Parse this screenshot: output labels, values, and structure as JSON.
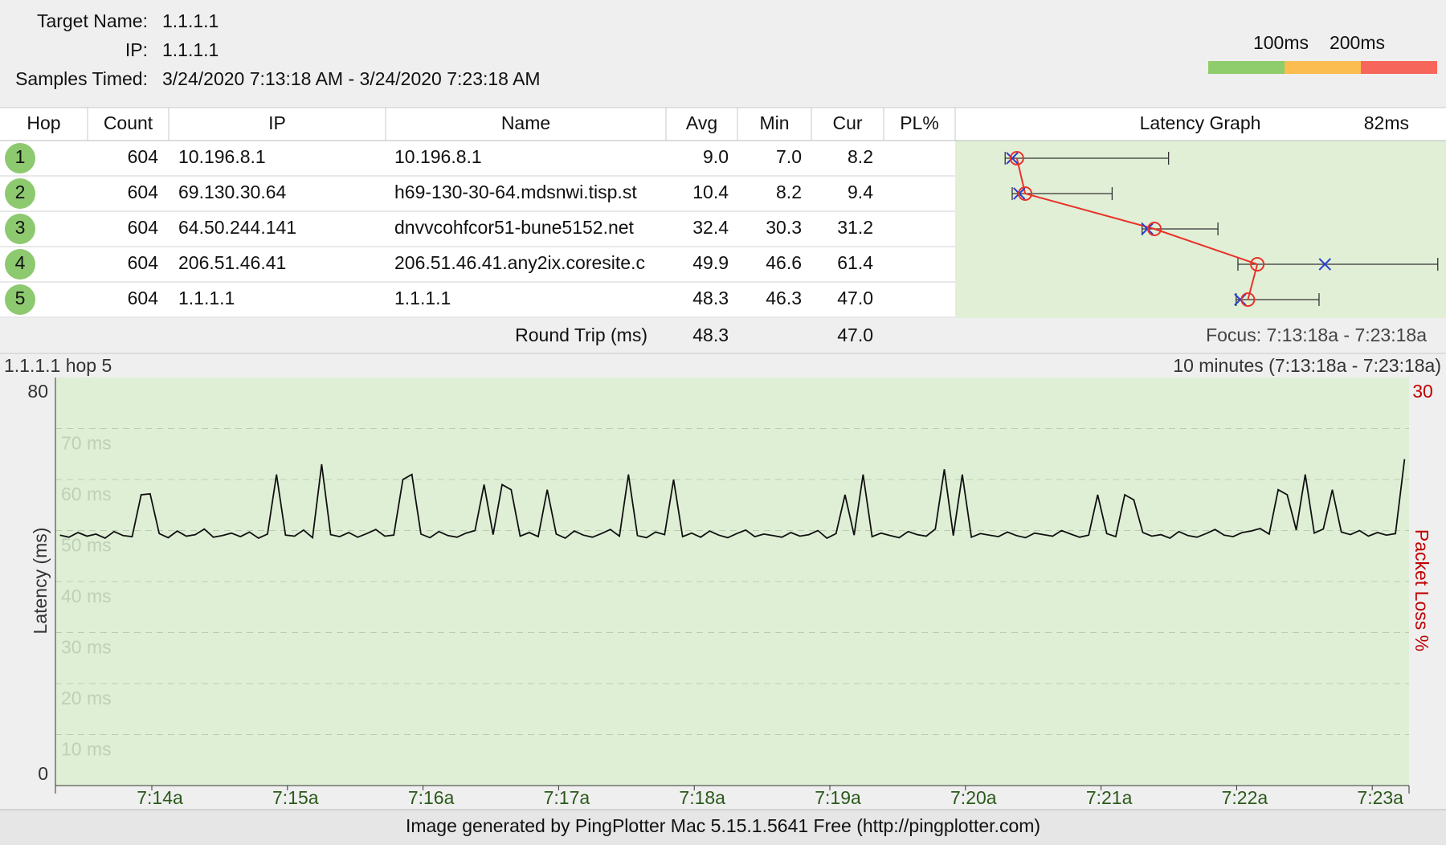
{
  "header": {
    "target_name_label": "Target Name:",
    "target_name": "1.1.1.1",
    "ip_label": "IP:",
    "ip": "1.1.1.1",
    "samples_label": "Samples Timed:",
    "samples": "3/24/2020 7:13:18 AM - 3/24/2020 7:23:18 AM"
  },
  "latency_scale": {
    "ticks": [
      {
        "value": 100,
        "label": "100ms"
      },
      {
        "value": 200,
        "label": "200ms"
      }
    ],
    "colors": [
      "#8fcc6b",
      "#fbbd4f",
      "#f7665a"
    ]
  },
  "table": {
    "columns": [
      "Hop",
      "Count",
      "IP",
      "Name",
      "Avg",
      "Min",
      "Cur",
      "PL%"
    ],
    "rows": [
      [
        "1",
        "604",
        "10.196.8.1",
        "10.196.8.1",
        "9.0",
        "7.0",
        "8.2"
      ],
      [
        "2",
        "604",
        "69.130.30.64",
        "h69-130-30-64.mdsnwi.tisp.st",
        "10.4",
        "8.2",
        "9.4"
      ],
      [
        "3",
        "604",
        "64.50.244.141",
        "dnvvcohfcor51-bune5152.net",
        "32.4",
        "30.3",
        "31.2"
      ],
      [
        "4",
        "604",
        "206.51.46.41",
        "206.51.46.41.any2ix.coresite.c",
        "49.9",
        "46.6",
        "61.4"
      ],
      [
        "5",
        "604",
        "1.1.1.1",
        "1.1.1.1",
        "48.3",
        "46.3",
        "47.0"
      ]
    ]
  },
  "latency_graph": {
    "title": "Latency Graph",
    "max": {
      "value": 82,
      "label": "82ms"
    },
    "hop_max": [
      34.8,
      25.2,
      43.2,
      80.6,
      60.4
    ],
    "avg_color": "#e8332a",
    "cur_color": "#2b3fd1"
  },
  "round_trip": {
    "label": "Round Trip (ms)",
    "avg": "48.3",
    "cur": "47.0"
  },
  "focus": "Focus: 7:13:18a - 7:23:18a",
  "chart_data": {
    "type": "line",
    "title": "1.1.1.1 hop 5",
    "subtitle": "10 minutes (7:13:18a - 7:23:18a)",
    "y_label": "Latency (ms)",
    "y2_label": "Packet Loss %",
    "color": "#111111",
    "values": [
      49.1,
      48.7,
      49.6,
      48.9,
      49.3,
      48.5,
      49.8,
      49.0,
      48.8,
      57.0,
      57.2,
      49.4,
      48.6,
      49.9,
      48.9,
      49.2,
      50.3,
      48.7,
      49.0,
      49.5,
      48.8,
      49.7,
      48.5,
      49.3,
      61.0,
      49.1,
      48.9,
      50.1,
      48.6,
      63.0,
      49.2,
      48.8,
      49.6,
      48.7,
      49.4,
      50.2,
      48.9,
      49.1,
      60.0,
      61.0,
      49.3,
      48.6,
      49.8,
      49.0,
      48.7,
      49.5,
      50.0,
      59.0,
      49.2,
      59.0,
      58.0,
      48.9,
      49.6,
      48.8,
      58.0,
      49.3,
      48.5,
      49.9,
      49.1,
      48.7,
      49.4,
      50.2,
      48.9,
      61.0,
      49.0,
      48.6,
      49.7,
      49.2,
      60.0,
      48.8,
      49.5,
      48.7,
      49.9,
      49.1,
      48.6,
      49.4,
      50.1,
      48.8,
      49.3,
      49.0,
      48.7,
      49.6,
      48.9,
      49.2,
      50.0,
      48.5,
      49.4,
      57.0,
      49.1,
      61.0,
      48.8,
      49.5,
      49.0,
      48.6,
      49.8,
      49.2,
      48.9,
      50.3,
      62.0,
      49.0,
      61.0,
      48.7,
      49.4,
      49.1,
      48.8,
      49.7,
      49.0,
      48.6,
      49.5,
      49.2,
      48.9,
      50.0,
      49.3,
      48.7,
      49.1,
      57.0,
      49.4,
      48.8,
      57.0,
      56.0,
      49.6,
      48.9,
      49.2,
      48.5,
      49.8,
      49.0,
      48.7,
      49.4,
      50.2,
      49.1,
      48.8,
      49.6,
      49.9,
      50.4,
      49.3,
      58.0,
      57.0,
      50.1,
      61.0,
      49.5,
      50.3,
      58.0,
      49.7,
      49.2,
      50.0,
      48.9,
      49.6,
      49.1,
      49.4,
      64.0
    ],
    "ylim": [
      0,
      80
    ],
    "yticks": [
      0,
      80
    ],
    "grid_ticks": [
      {
        "value": 70,
        "label": "70 ms"
      },
      {
        "value": 60,
        "label": "60 ms"
      },
      {
        "value": 50,
        "label": "50 ms"
      },
      {
        "value": 40,
        "label": "40 ms"
      },
      {
        "value": 30,
        "label": "30 ms"
      },
      {
        "value": 20,
        "label": "20 ms"
      },
      {
        "value": 10,
        "label": "10 ms"
      }
    ],
    "y2lim": [
      0,
      30
    ],
    "y2ticks": [
      30
    ],
    "xtick_labels": [
      "7:14a",
      "7:15a",
      "7:16a",
      "7:17a",
      "7:18a",
      "7:19a",
      "7:20a",
      "7:21a",
      "7:22a",
      "7:23a"
    ]
  },
  "footer": "Image generated by PingPlotter Mac 5.15.1.5641 Free (http://pingplotter.com)"
}
